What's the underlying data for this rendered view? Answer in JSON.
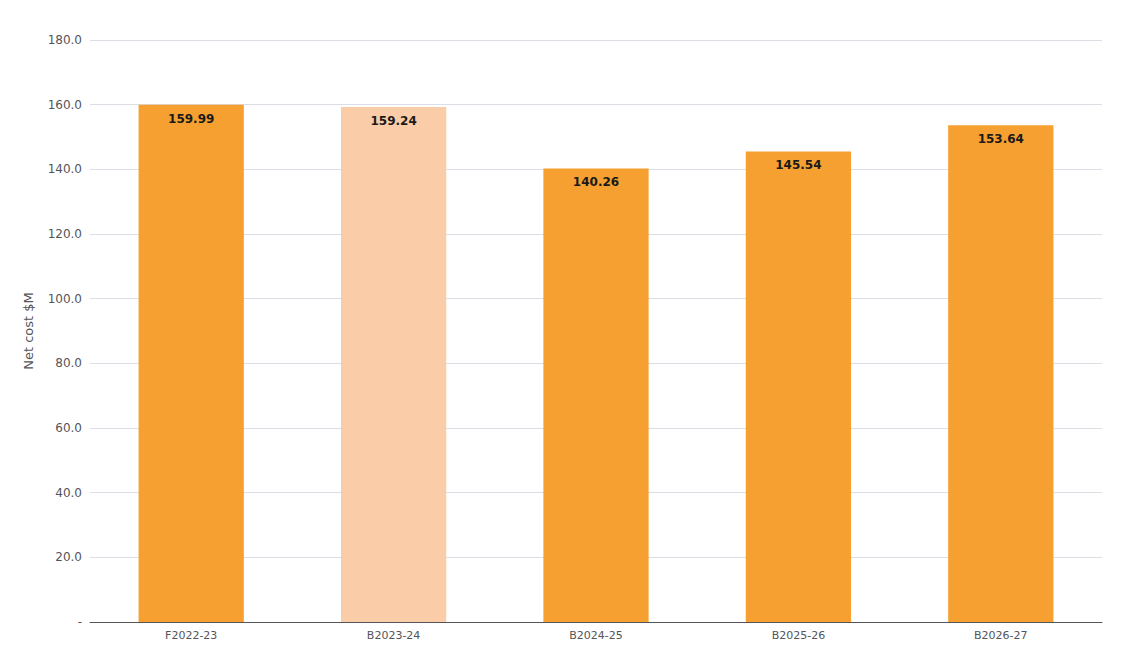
{
  "chart_data": {
    "type": "bar",
    "ylabel": "Net cost $M",
    "categories": [
      "F2022-23",
      "B2023-24",
      "B2024-25",
      "B2025-26",
      "B2026-27"
    ],
    "values": [
      159.99,
      159.24,
      140.26,
      145.54,
      153.64
    ],
    "colors": [
      "#F5A030",
      "#FACDA8",
      "#F5A030",
      "#F5A030",
      "#F5A030"
    ],
    "ylim": [
      0,
      180
    ],
    "yticks": [
      {
        "value": 0,
        "label": "-"
      },
      {
        "value": 20,
        "label": "20.0"
      },
      {
        "value": 40,
        "label": "40.0"
      },
      {
        "value": 60,
        "label": "60.0"
      },
      {
        "value": 80,
        "label": "80.0"
      },
      {
        "value": 100,
        "label": "100.0"
      },
      {
        "value": 120,
        "label": "120.0"
      },
      {
        "value": 140,
        "label": "140.0"
      },
      {
        "value": 160,
        "label": "160.0"
      },
      {
        "value": 180,
        "label": "180.0"
      }
    ],
    "grid": true,
    "data_labels": true
  }
}
